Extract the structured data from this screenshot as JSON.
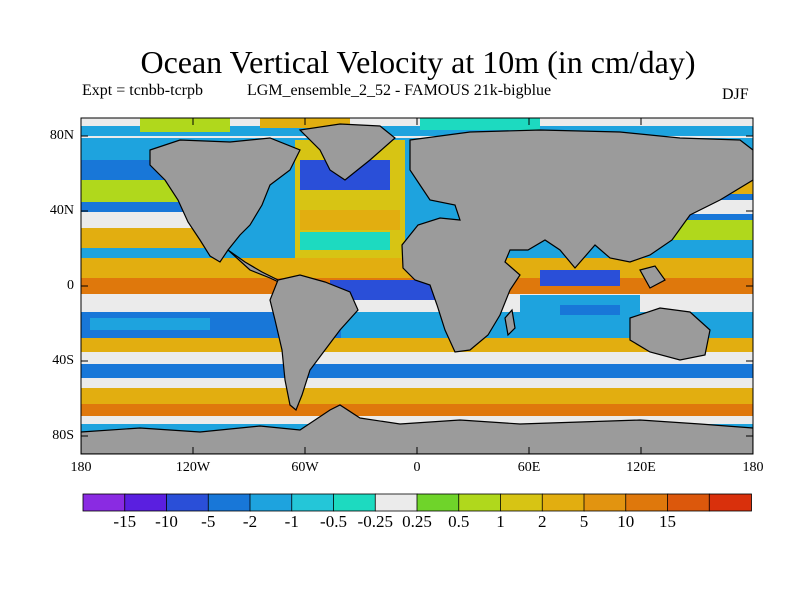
{
  "title": "Ocean Vertical Velocity at 10m (in cm/day)",
  "experiment_label": "Expt = tcnbb-tcrpb",
  "run_label": "LGM_ensemble_2_52 - FAMOUS 21k-bigblue",
  "season": "DJF",
  "lat_ticks": [
    "80N",
    "40N",
    "0",
    "40S",
    "80S"
  ],
  "lon_ticks": [
    "180",
    "120W",
    "60W",
    "0",
    "60E",
    "120E",
    "180"
  ],
  "colorbar": {
    "colors": [
      "#8a2be2",
      "#5a1fe0",
      "#2a4fd8",
      "#1877d8",
      "#1ea3de",
      "#24c6d8",
      "#1ddac0",
      "#ebebeb",
      "#6fd42a",
      "#b0d81c",
      "#d7c414",
      "#e2ae10",
      "#e29410",
      "#df780c",
      "#dc580c",
      "#d9300c"
    ],
    "labels": [
      "-15",
      "-10",
      "-5",
      "-2",
      "-1",
      "-0.5",
      "-0.25",
      "0.25",
      "0.5",
      "1",
      "2",
      "5",
      "10",
      "15"
    ]
  },
  "colors": {
    "land": "#9b9b9b",
    "background": "#ffffff",
    "coastline": "#000000"
  }
}
